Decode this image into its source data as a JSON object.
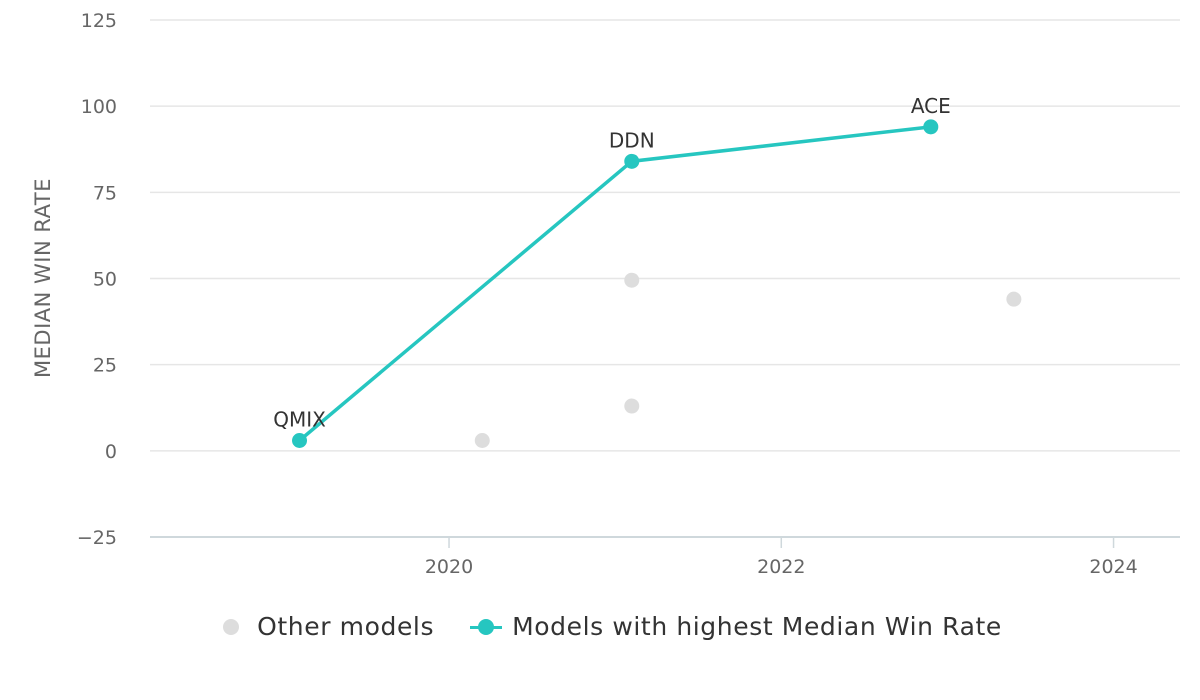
{
  "chart_data": {
    "type": "scatter",
    "title": "",
    "xlabel": "",
    "ylabel": "MEDIAN WIN RATE",
    "xlim": [
      2018.2,
      2024.4
    ],
    "ylim": [
      -25,
      125
    ],
    "xticks": [
      2020,
      2022,
      2024
    ],
    "yticks": [
      -25,
      0,
      25,
      50,
      75,
      100,
      125
    ],
    "ytick_labels": [
      "−25",
      "0",
      "25",
      "50",
      "75",
      "100",
      "125"
    ],
    "grid": true,
    "legend_position": "bottom",
    "series": [
      {
        "name": "Other models",
        "color": "#dddddd",
        "mode": "markers",
        "points": [
          {
            "x": 2020.2,
            "y": 3
          },
          {
            "x": 2021.1,
            "y": 13
          },
          {
            "x": 2021.1,
            "y": 49.5
          },
          {
            "x": 2023.4,
            "y": 44
          }
        ]
      },
      {
        "name": "Models with highest Median Win Rate",
        "color": "#26c6c0",
        "mode": "lines+markers",
        "points": [
          {
            "x": 2019.1,
            "y": 3,
            "label": "QMIX"
          },
          {
            "x": 2021.1,
            "y": 84,
            "label": "DDN"
          },
          {
            "x": 2022.9,
            "y": 94,
            "label": "ACE"
          }
        ]
      }
    ]
  }
}
